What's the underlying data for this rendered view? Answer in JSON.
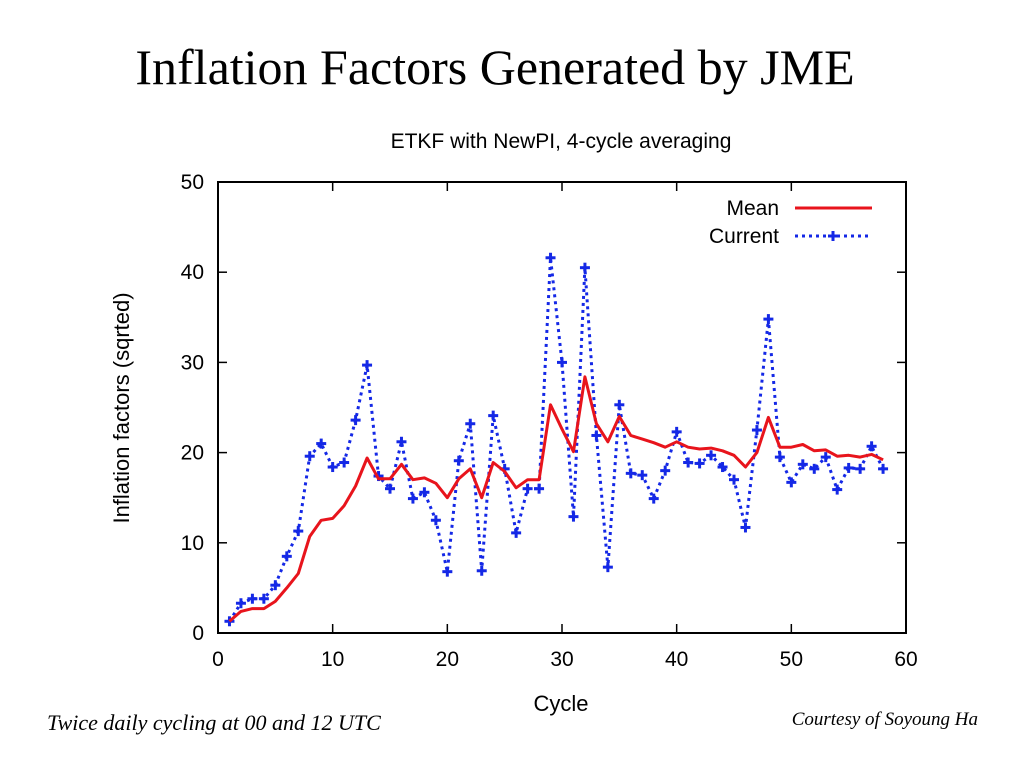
{
  "slide": {
    "title": "Inflation Factors Generated by JME",
    "footnote_left": "Twice daily cycling at 00 and 12 UTC",
    "footnote_right": "Courtesy of Soyoung Ha"
  },
  "chart_data": {
    "type": "line",
    "title": "ETKF with NewPI, 4-cycle averaging",
    "xlabel": "Cycle",
    "ylabel": "Inflation factors (sqrted)",
    "xlim": [
      0,
      60
    ],
    "ylim": [
      0,
      50
    ],
    "xticks": [
      0,
      10,
      20,
      30,
      40,
      50,
      60
    ],
    "yticks": [
      0,
      10,
      20,
      30,
      40,
      50
    ],
    "x": [
      1,
      2,
      3,
      4,
      5,
      6,
      7,
      8,
      9,
      10,
      11,
      12,
      13,
      14,
      15,
      16,
      17,
      18,
      19,
      20,
      21,
      22,
      23,
      24,
      25,
      26,
      27,
      28,
      29,
      30,
      31,
      32,
      33,
      34,
      35,
      36,
      37,
      38,
      39,
      40,
      41,
      42,
      43,
      44,
      45,
      46,
      47,
      48,
      49,
      50,
      51,
      52,
      53,
      54,
      55,
      56,
      57,
      58
    ],
    "legend_position": "top-right",
    "grid": false,
    "series": [
      {
        "name": "Mean",
        "color": "#e8141c",
        "style": "solid",
        "values": [
          1.3,
          2.4,
          2.7,
          2.7,
          3.5,
          5.0,
          6.6,
          10.7,
          12.5,
          12.7,
          14.1,
          16.3,
          19.4,
          17.1,
          17.1,
          18.7,
          17.0,
          17.2,
          16.6,
          15.0,
          17.1,
          18.2,
          15.0,
          18.9,
          17.9,
          16.1,
          17.0,
          17.0,
          25.3,
          22.6,
          20.1,
          28.4,
          23.2,
          21.2,
          24.0,
          21.9,
          21.5,
          21.1,
          20.6,
          21.2,
          20.6,
          20.4,
          20.5,
          20.2,
          19.7,
          18.4,
          20.0,
          23.9,
          20.6,
          20.6,
          20.9,
          20.2,
          20.3,
          19.6,
          19.7,
          19.5,
          19.8,
          19.2
        ]
      },
      {
        "name": "Current",
        "color": "#1428e6",
        "style": "dotted",
        "marker": "plus",
        "values": [
          1.3,
          3.3,
          3.8,
          3.8,
          5.3,
          8.5,
          11.3,
          19.6,
          21.0,
          18.4,
          18.9,
          23.6,
          29.7,
          17.4,
          16.0,
          21.2,
          14.9,
          15.6,
          12.5,
          6.8,
          19.1,
          23.2,
          6.9,
          24.1,
          18.2,
          11.1,
          16.0,
          16.0,
          41.6,
          30.0,
          12.9,
          40.5,
          21.9,
          7.3,
          25.3,
          17.7,
          17.5,
          14.9,
          18.0,
          22.3,
          18.9,
          18.8,
          19.7,
          18.4,
          17.0,
          11.7,
          22.5,
          34.8,
          19.5,
          16.7,
          18.7,
          18.2,
          19.5,
          15.9,
          18.3,
          18.2,
          20.7,
          18.2
        ]
      }
    ]
  }
}
